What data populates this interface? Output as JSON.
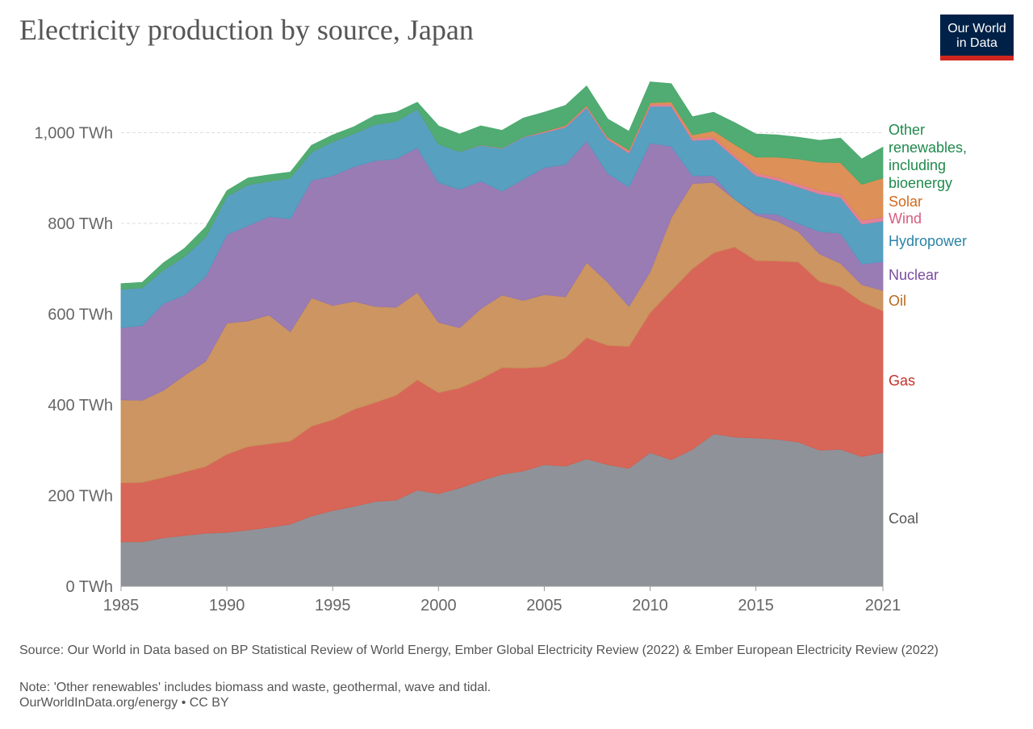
{
  "chart_data": {
    "type": "stacked-area",
    "title": "Electricity production by source, Japan",
    "logo": "Our World in Data",
    "source": "Source: Our World in Data based on BP Statistical Review of World Energy, Ember Global Electricity Review (2022) & Ember European Electricity Review (2022)",
    "note": "Note: 'Other renewables' includes biomass and waste, geothermal, wave and tidal.",
    "credit": "OurWorldInData.org/energy • CC BY",
    "x": [
      1985,
      1986,
      1987,
      1988,
      1989,
      1990,
      1991,
      1992,
      1993,
      1994,
      1995,
      1996,
      1997,
      1998,
      1999,
      2000,
      2001,
      2002,
      2003,
      2004,
      2005,
      2006,
      2007,
      2008,
      2009,
      2010,
      2011,
      2012,
      2013,
      2014,
      2015,
      2016,
      2017,
      2018,
      2019,
      2020,
      2021
    ],
    "xlim": [
      1985,
      2021
    ],
    "xticks": [
      1985,
      1990,
      1995,
      2000,
      2005,
      2010,
      2015,
      2021
    ],
    "ylim": [
      0,
      1120
    ],
    "yticks": [
      {
        "value": 0,
        "label": "0 TWh"
      },
      {
        "value": 200,
        "label": "200 TWh"
      },
      {
        "value": 400,
        "label": "400 TWh"
      },
      {
        "value": 600,
        "label": "600 TWh"
      },
      {
        "value": 800,
        "label": "800 TWh"
      },
      {
        "value": 1000,
        "label": "1,000 TWh"
      }
    ],
    "grid": true,
    "series": [
      {
        "name": "Coal",
        "color": "#898c93",
        "label_color": "#555555",
        "values": [
          98,
          98,
          107,
          112,
          117,
          119,
          124,
          130,
          137,
          155,
          167,
          176,
          187,
          190,
          212,
          204,
          217,
          233,
          247,
          254,
          268,
          265,
          281,
          268,
          260,
          295,
          279,
          302,
          336,
          329,
          327,
          324,
          318,
          300,
          302,
          286,
          295
        ]
      },
      {
        "name": "Gas",
        "color": "#d65e4f",
        "label_color": "#c2302a",
        "values": [
          130,
          131,
          133,
          140,
          147,
          172,
          184,
          184,
          183,
          198,
          200,
          214,
          218,
          231,
          243,
          223,
          220,
          224,
          235,
          227,
          216,
          239,
          267,
          263,
          269,
          308,
          373,
          398,
          399,
          419,
          391,
          393,
          397,
          372,
          358,
          341,
          312
        ]
      },
      {
        "name": "Oil",
        "color": "#c98f58",
        "label_color": "#b76a1e",
        "values": [
          183,
          181,
          192,
          213,
          232,
          289,
          277,
          284,
          241,
          283,
          252,
          238,
          212,
          194,
          193,
          155,
          133,
          155,
          160,
          149,
          159,
          134,
          166,
          139,
          88,
          90,
          161,
          188,
          155,
          105,
          100,
          88,
          67,
          61,
          52,
          38,
          45
        ]
      },
      {
        "name": "Nuclear",
        "color": "#9575b0",
        "label_color": "#7a4ba1",
        "values": [
          159,
          165,
          191,
          177,
          187,
          195,
          210,
          217,
          249,
          259,
          286,
          297,
          321,
          327,
          319,
          308,
          305,
          281,
          229,
          267,
          280,
          292,
          268,
          240,
          263,
          284,
          157,
          17,
          15,
          0,
          4,
          15,
          18,
          49,
          66,
          45,
          64
        ]
      },
      {
        "name": "Hydropower",
        "color": "#4e9bbd",
        "label_color": "#2a84a6",
        "values": [
          85,
          83,
          74,
          85,
          87,
          85,
          90,
          78,
          90,
          62,
          75,
          73,
          80,
          83,
          85,
          85,
          83,
          79,
          94,
          93,
          77,
          82,
          73,
          75,
          75,
          81,
          88,
          78,
          80,
          92,
          83,
          75,
          80,
          83,
          79,
          88,
          89
        ]
      },
      {
        "name": "Wind",
        "color": "#e07a93",
        "label_color": "#d95d7f",
        "values": [
          0,
          0,
          0,
          0,
          0,
          0,
          0,
          0,
          0,
          0,
          0,
          0,
          0,
          0,
          0,
          0,
          0,
          1,
          1,
          1,
          2,
          2,
          3,
          3,
          4,
          4,
          5,
          5,
          5,
          5,
          6,
          6,
          7,
          7,
          8,
          9,
          9
        ]
      },
      {
        "name": "Solar",
        "color": "#db8a4e",
        "label_color": "#d2691e",
        "values": [
          0,
          0,
          0,
          0,
          0,
          0,
          0,
          0,
          0,
          0,
          0,
          0,
          0,
          0,
          0,
          0,
          0,
          0,
          0,
          0,
          1,
          2,
          2,
          2,
          3,
          4,
          5,
          7,
          14,
          24,
          35,
          45,
          55,
          63,
          69,
          79,
          86
        ]
      },
      {
        "name": "Other renewables, including bioenergy",
        "color": "#48a86c",
        "label_color": "#1f8a4c",
        "values": [
          12,
          12,
          16,
          18,
          22,
          12,
          15,
          14,
          13,
          15,
          15,
          15,
          20,
          20,
          15,
          40,
          39,
          42,
          39,
          41,
          42,
          44,
          43,
          40,
          41,
          46,
          40,
          40,
          41,
          48,
          51,
          49,
          48,
          48,
          54,
          56,
          68
        ]
      }
    ]
  }
}
